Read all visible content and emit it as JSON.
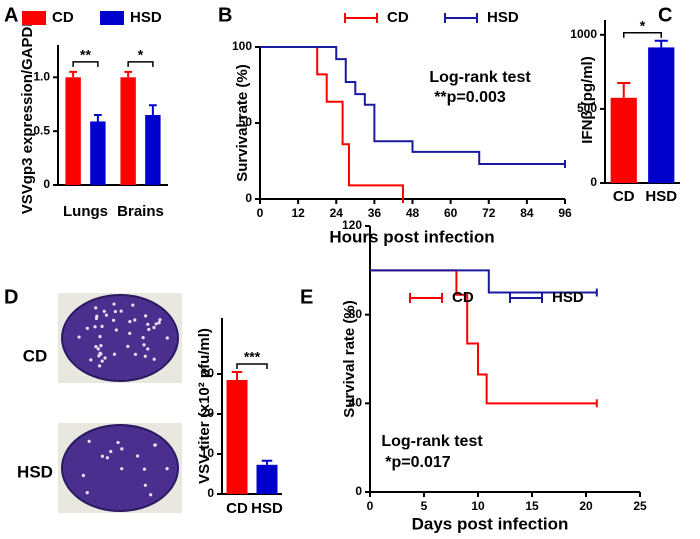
{
  "chart_data": [
    {
      "panel": "A",
      "type": "bar",
      "ylabel": "VSVgp3 expression/GAPDH",
      "categories": [
        "Lungs",
        "Brains"
      ],
      "series": [
        {
          "name": "CD",
          "color": "#ff0000",
          "values": [
            1.0,
            1.0
          ],
          "errors": [
            0.05,
            0.05
          ]
        },
        {
          "name": "HSD",
          "color": "#0000cc",
          "values": [
            0.59,
            0.65
          ],
          "errors": [
            0.06,
            0.09
          ]
        }
      ],
      "significance": [
        "**",
        "*"
      ],
      "ylim": [
        0,
        1.3
      ],
      "yticks": [
        0,
        0.5,
        {
          "value": 1,
          "label": "1.0"
        }
      ]
    },
    {
      "panel": "B",
      "type": "line",
      "ylabel": "Survival rate (%)",
      "xlabel": "Hours post infection",
      "series": [
        {
          "name": "CD",
          "color": "#ff0000",
          "x": [
            0,
            18,
            21,
            26,
            28,
            45
          ],
          "values": [
            100,
            82,
            64,
            36,
            9,
            0
          ]
        },
        {
          "name": "HSD",
          "color": "#1a1aa0",
          "x": [
            0,
            24,
            27,
            30,
            33,
            36,
            48,
            69,
            96
          ],
          "values": [
            100,
            92,
            77,
            69,
            62,
            38,
            31,
            23,
            23
          ]
        }
      ],
      "annotations": [
        "Log-rank test",
        "**p=0.003"
      ],
      "xlim": [
        0,
        96
      ],
      "xticks": [
        0,
        12,
        24,
        36,
        48,
        60,
        72,
        84,
        96
      ],
      "ylim": [
        0,
        100
      ],
      "yticks": [
        0,
        50,
        100
      ]
    },
    {
      "panel": "C",
      "type": "bar",
      "ylabel": "IFNβ (pg/ml)",
      "categories": [
        "CD",
        "HSD"
      ],
      "colors": [
        "#ff0000",
        "#0000cc"
      ],
      "values": [
        575,
        915
      ],
      "errors": [
        100,
        45
      ],
      "significance": "*",
      "ylim": [
        0,
        1100
      ],
      "yticks": [
        0,
        500,
        1000
      ]
    },
    {
      "panel": "D",
      "type": "bar",
      "image_labels": [
        "CD",
        "HSD"
      ],
      "ylabel": "VSV titer (x10² pfu/ml)",
      "categories": [
        "CD",
        "HSD"
      ],
      "colors": [
        "#ff0000",
        "#0000cc"
      ],
      "values": [
        28.5,
        7.3
      ],
      "errors": [
        2,
        1
      ],
      "significance": "***",
      "ylim": [
        0,
        44
      ],
      "yticks": [
        0,
        10,
        20,
        30
      ]
    },
    {
      "panel": "E",
      "type": "line",
      "ylabel": "Survival rate (%)",
      "xlabel": "Days post infection",
      "series": [
        {
          "name": "CD",
          "color": "#ff0000",
          "x": [
            0,
            8,
            9,
            10,
            10.8,
            21
          ],
          "values": [
            100,
            89,
            67,
            53,
            40,
            40
          ]
        },
        {
          "name": "HSD",
          "color": "#1a1aa0",
          "x": [
            0,
            11,
            21
          ],
          "values": [
            100,
            90,
            90
          ]
        }
      ],
      "annotations": [
        "Log-rank test",
        "*p=0.017"
      ],
      "xlim": [
        0,
        25
      ],
      "xticks": [
        0,
        5,
        10,
        15,
        20,
        25
      ],
      "ylim": [
        0,
        120
      ],
      "yticks": [
        0,
        40,
        80,
        120
      ]
    }
  ]
}
